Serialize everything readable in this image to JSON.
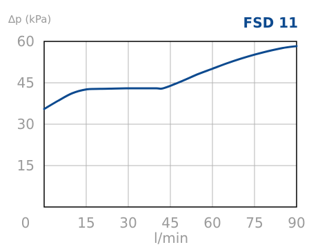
{
  "colors": {
    "line": "#0d4a8f",
    "title": "#0d4a8f",
    "grid": "#b4b4b4",
    "frame": "#000000",
    "text": "#9a9a9a"
  },
  "chart_data": {
    "type": "line",
    "title": "FSD 11",
    "xlabel": "l/min",
    "ylabel": "∆p (kPa)",
    "xlim": [
      0,
      90
    ],
    "ylim": [
      0,
      60
    ],
    "xticks": [
      "0",
      "15",
      "30",
      "45",
      "60",
      "75",
      "90"
    ],
    "yticks": [
      "15",
      "30",
      "45",
      "60"
    ],
    "grid": true,
    "x": [
      0,
      5,
      10,
      15,
      20,
      25,
      30,
      35,
      40,
      42,
      45,
      50,
      55,
      60,
      65,
      70,
      75,
      80,
      85,
      90
    ],
    "y": [
      35.5,
      38.5,
      41.2,
      42.6,
      42.8,
      42.9,
      43.0,
      43.0,
      43.0,
      42.9,
      43.9,
      46.0,
      48.2,
      50.1,
      52.0,
      53.7,
      55.2,
      56.5,
      57.6,
      58.3
    ]
  }
}
